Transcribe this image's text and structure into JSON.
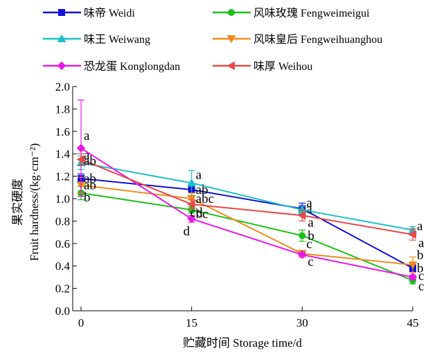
{
  "chart_data": {
    "type": "line",
    "title": "",
    "xlabel": "贮藏时间 Storage time/d",
    "ylabel_line1": "果实硬度",
    "ylabel_line2": "Fruit hardness/(kg·cm⁻²)",
    "x": [
      0,
      15,
      30,
      45
    ],
    "xlim": [
      0,
      45
    ],
    "ylim": [
      0.0,
      2.0
    ],
    "yticks": [
      "0.0",
      "0.2",
      "0.4",
      "0.6",
      "0.8",
      "1.0",
      "1.2",
      "1.4",
      "1.6",
      "1.8",
      "2.0"
    ],
    "xticks": [
      "0",
      "15",
      "30",
      "45"
    ],
    "grid": false,
    "legend_position": "top",
    "series": [
      {
        "name": "味帝 Weidi",
        "color": "#1010d8",
        "marker": "square",
        "values": [
          1.18,
          1.08,
          0.91,
          0.38
        ],
        "errors": [
          0.04,
          0.05,
          0.05,
          0.03
        ],
        "labels": [
          "ab",
          "ab",
          "a",
          "b"
        ]
      },
      {
        "name": "风味玫瑰 Fengweimeigui",
        "color": "#18c018",
        "marker": "circle",
        "values": [
          1.05,
          0.9,
          0.67,
          0.27
        ],
        "errors": [
          0.06,
          0.03,
          0.05,
          0.03
        ],
        "labels": [
          "b",
          "bc",
          "b",
          "c"
        ]
      },
      {
        "name": "味王 Weiwang",
        "color": "#18c0c8",
        "marker": "triangle-up",
        "values": [
          1.32,
          1.14,
          0.9,
          0.72
        ],
        "errors": [
          0.06,
          0.11,
          0.03,
          0.03
        ],
        "labels": [
          "a",
          "a",
          "a",
          "a"
        ]
      },
      {
        "name": "风味皇后 Fengweihuanghou",
        "color": "#f08c18",
        "marker": "triangle-down",
        "values": [
          1.12,
          1.0,
          0.51,
          0.41
        ],
        "errors": [
          0.07,
          0.05,
          0.03,
          0.07
        ],
        "labels": [
          "ab",
          "abc",
          "c",
          "b"
        ]
      },
      {
        "name": "恐龙蛋 Konglongdan",
        "color": "#e818e8",
        "marker": "diamond",
        "values": [
          1.45,
          0.82,
          0.5,
          0.3
        ],
        "errors": [
          0.43,
          0.03,
          0.02,
          0.02
        ],
        "labels": [
          "a",
          "d",
          "c",
          "c"
        ]
      },
      {
        "name": "味厚 Weihou",
        "color": "#e84848",
        "marker": "triangle-left",
        "values": [
          1.35,
          0.95,
          0.85,
          0.68
        ],
        "errors": [
          0.05,
          0.04,
          0.05,
          0.05
        ],
        "labels": [
          "ab",
          "cd",
          "a",
          "a"
        ]
      }
    ]
  }
}
